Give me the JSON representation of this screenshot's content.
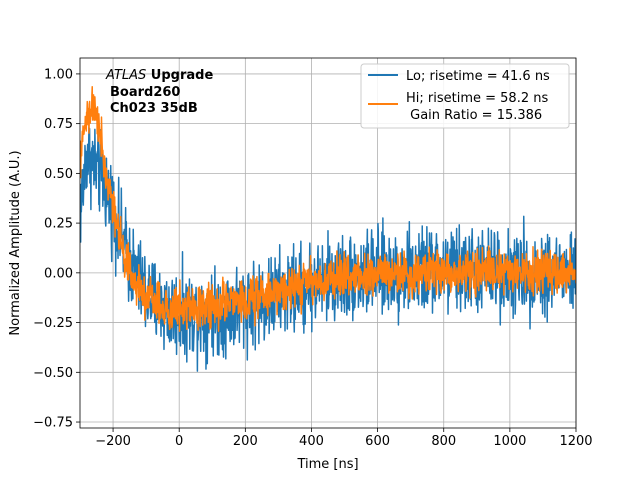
{
  "chart_data": {
    "type": "line",
    "title": "",
    "xlabel": "Time [ns]",
    "ylabel": "Normalized Amplitude (A.U.)",
    "xlim": [
      -300,
      1200
    ],
    "ylim": [
      -0.78,
      1.08
    ],
    "xticks": [
      -200,
      0,
      200,
      400,
      600,
      800,
      1000,
      1200
    ],
    "yticks": [
      -0.75,
      -0.5,
      -0.25,
      0.0,
      0.25,
      0.5,
      0.75,
      1.0
    ],
    "xtick_labels": [
      "−200",
      "0",
      "200",
      "400",
      "600",
      "800",
      "1000",
      "1200"
    ],
    "ytick_labels": [
      "−0.75",
      "−0.50",
      "−0.25",
      "0.00",
      "0.25",
      "0.50",
      "0.75",
      "1.00"
    ],
    "grid": true,
    "legend_position": "top-right",
    "annotation": {
      "experiment": "ATLAS",
      "experiment_suffix": " Upgrade",
      "line2": "Board260",
      "line3": "Ch023 35dB"
    },
    "series": [
      {
        "name": "Lo; risetime = 41.6 ns",
        "color": "#1f77b4",
        "x": [
          -300,
          -280,
          -260,
          -240,
          -220,
          -200,
          -180,
          -160,
          -140,
          -120,
          -100,
          -80,
          -60,
          -40,
          -20,
          0,
          20,
          40,
          60,
          80,
          100,
          120,
          140,
          160,
          180,
          200,
          220,
          240,
          260,
          280,
          300,
          350,
          400,
          450,
          500,
          550,
          600,
          650,
          700,
          750,
          800,
          850,
          900,
          950,
          1000,
          1050,
          1100,
          1150,
          1200
        ],
        "values": [
          0.3,
          0.6,
          0.55,
          0.5,
          0.42,
          0.32,
          0.2,
          0.1,
          0.02,
          -0.05,
          -0.1,
          -0.14,
          -0.16,
          -0.18,
          -0.2,
          -0.2,
          -0.21,
          -0.21,
          -0.21,
          -0.2,
          -0.2,
          -0.2,
          -0.19,
          -0.18,
          -0.17,
          -0.16,
          -0.15,
          -0.15,
          -0.14,
          -0.13,
          -0.11,
          -0.09,
          -0.06,
          -0.04,
          -0.02,
          -0.01,
          0.0,
          0.0,
          0.0,
          0.01,
          0.01,
          0.01,
          0.01,
          0.01,
          0.0,
          0.0,
          0.0,
          0.0,
          0.0
        ],
        "noise_amplitude": 0.2
      },
      {
        "name": "Hi; risetime = 58.2 ns",
        "name_line2": " Gain Ratio = 15.386",
        "color": "#ff7f0e",
        "x": [
          -300,
          -280,
          -260,
          -240,
          -220,
          -200,
          -180,
          -160,
          -140,
          -120,
          -100,
          -80,
          -60,
          -40,
          -20,
          0,
          20,
          40,
          60,
          80,
          100,
          120,
          140,
          160,
          180,
          200,
          220,
          240,
          260,
          280,
          300,
          350,
          400,
          450,
          500,
          550,
          600,
          650,
          700,
          750,
          800,
          850,
          900,
          950,
          1000,
          1050,
          1100,
          1150,
          1200
        ],
        "values": [
          0.55,
          0.8,
          0.85,
          0.7,
          0.5,
          0.35,
          0.2,
          0.06,
          -0.02,
          -0.08,
          -0.12,
          -0.14,
          -0.16,
          -0.17,
          -0.18,
          -0.18,
          -0.18,
          -0.18,
          -0.17,
          -0.16,
          -0.16,
          -0.15,
          -0.15,
          -0.14,
          -0.14,
          -0.13,
          -0.13,
          -0.12,
          -0.11,
          -0.1,
          -0.09,
          -0.07,
          -0.05,
          -0.03,
          -0.02,
          -0.01,
          0.0,
          0.0,
          0.0,
          0.01,
          0.01,
          0.01,
          0.01,
          0.01,
          0.01,
          0.0,
          0.0,
          0.0,
          0.0
        ],
        "noise_amplitude": 0.1
      }
    ]
  }
}
